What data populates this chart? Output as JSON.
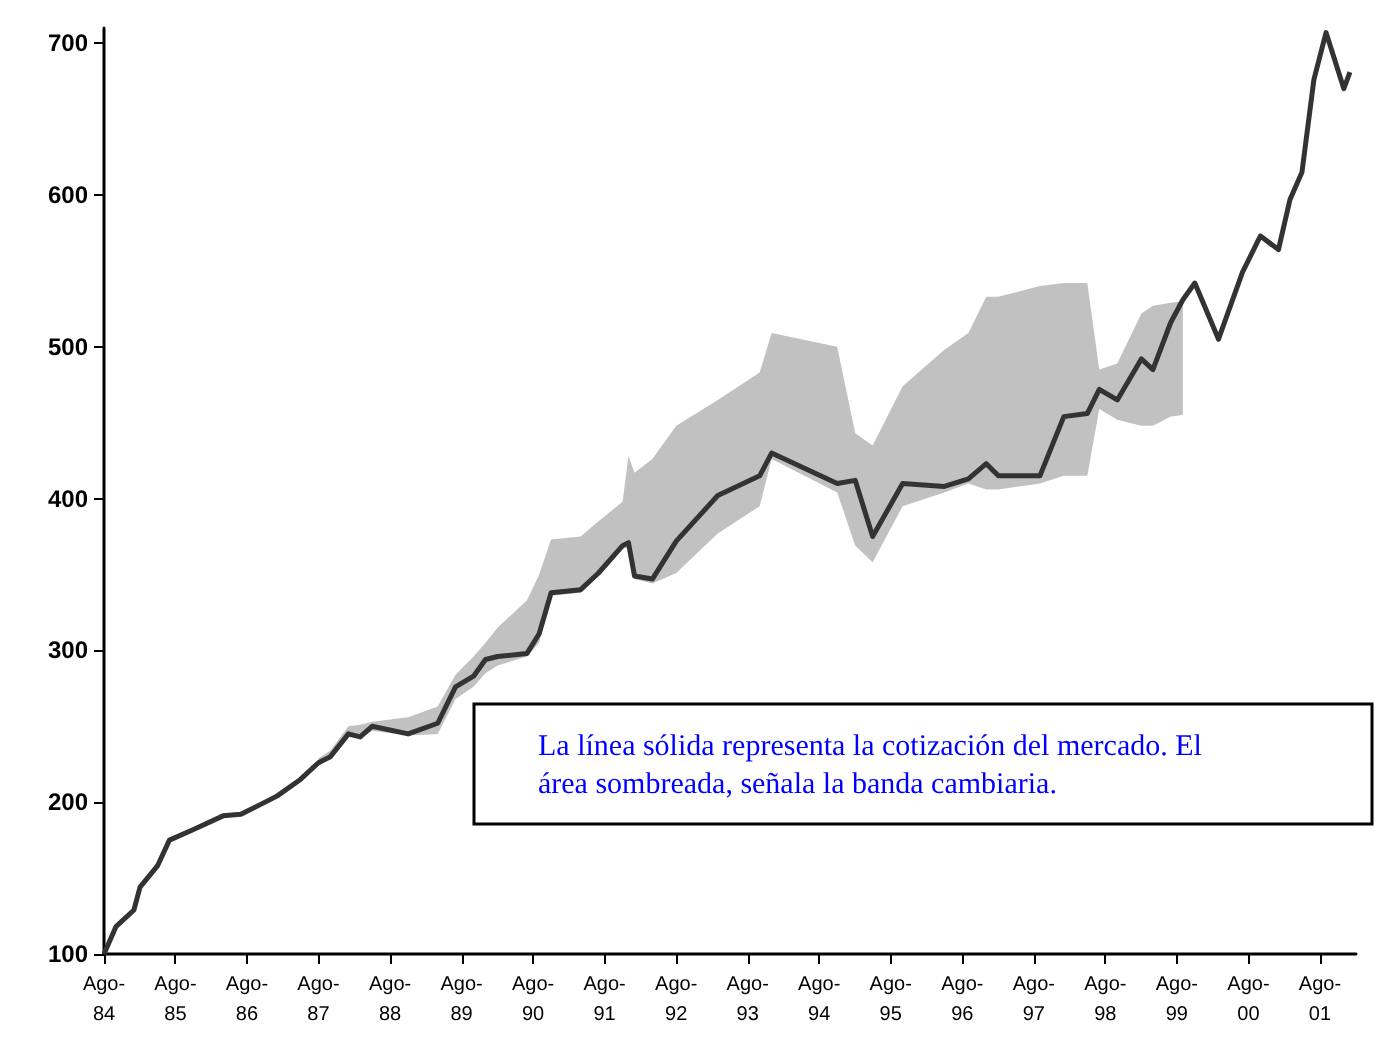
{
  "chart_data": {
    "type": "line",
    "x": [
      "1984-08",
      "1984-10",
      "1985-01",
      "1985-02",
      "1985-05",
      "1985-07",
      "1985-11",
      "1986-04",
      "1986-07",
      "1987-01",
      "1987-05",
      "1987-08",
      "1987-10",
      "1988-01",
      "1988-03",
      "1988-05",
      "1988-11",
      "1989-04",
      "1989-07",
      "1989-10",
      "1989-12",
      "1990-02",
      "1990-07",
      "1990-09",
      "1990-11",
      "1991-04",
      "1991-07",
      "1991-11",
      "1991-12",
      "1992-01",
      "1992-04",
      "1992-08",
      "1993-03",
      "1993-10",
      "1993-12",
      "1994-11",
      "1995-02",
      "1995-05",
      "1995-10",
      "1996-05",
      "1996-09",
      "1996-12",
      "1997-02",
      "1997-09",
      "1998-01",
      "1998-05",
      "1998-07",
      "1998-10",
      "1999-02",
      "1999-04",
      "1999-07",
      "1999-09",
      "1999-11",
      "2000-03",
      "2000-07",
      "2000-10",
      "2001-01",
      "2001-03",
      "2001-05",
      "2001-07",
      "2001-09",
      "2001-12",
      "2002-01"
    ],
    "series": [
      {
        "color": "#333333",
        "values": [
          100,
          118,
          129,
          144,
          158,
          175,
          182,
          191,
          192,
          204,
          215,
          226,
          230,
          245,
          243,
          250,
          245,
          252,
          276,
          283,
          294,
          296,
          298,
          311,
          338,
          340,
          351,
          369,
          371,
          349,
          347,
          372,
          402,
          415,
          430,
          410,
          412,
          375,
          410,
          408,
          413,
          423,
          415,
          415,
          454,
          456,
          472,
          465,
          492,
          485,
          516,
          531,
          542,
          505,
          549,
          573,
          564,
          597,
          615,
          676,
          707,
          670,
          681
        ],
        "lower": [
          null,
          null,
          null,
          null,
          null,
          null,
          null,
          null,
          null,
          null,
          null,
          224,
          229,
          243,
          242,
          247,
          244,
          245,
          268,
          276,
          285,
          290,
          296,
          305,
          336,
          338,
          349,
          367,
          368,
          347,
          344,
          351,
          377,
          395,
          426,
          404,
          369,
          358,
          395,
          404,
          410,
          406,
          406,
          410,
          415,
          415,
          459,
          452,
          448,
          448,
          454,
          455,
          null,
          null,
          null,
          null,
          null,
          null,
          null,
          null,
          null,
          null,
          null
        ],
        "upper": [
          null,
          null,
          null,
          null,
          null,
          null,
          null,
          null,
          null,
          null,
          null,
          229,
          234,
          250,
          251,
          253,
          256,
          263,
          284,
          296,
          305,
          315,
          333,
          350,
          373,
          375,
          385,
          398,
          428,
          417,
          426,
          448,
          465,
          483,
          509,
          500,
          443,
          435,
          474,
          498,
          509,
          533,
          533,
          540,
          542,
          542,
          485,
          489,
          522,
          527,
          529,
          530,
          null,
          null,
          null,
          null,
          null,
          null,
          null,
          null,
          null,
          null,
          null
        ]
      }
    ],
    "ylim": [
      100,
      710
    ],
    "yticks": [
      100,
      200,
      300,
      400,
      500,
      600,
      700
    ],
    "xlim": [
      "1984-08",
      "2002-02"
    ],
    "xticks": [
      {
        "value": "1984-08",
        "label": "Ago-84"
      },
      {
        "value": "1985-08",
        "label": "Ago-85"
      },
      {
        "value": "1986-08",
        "label": "Ago-86"
      },
      {
        "value": "1987-08",
        "label": "Ago-87"
      },
      {
        "value": "1988-08",
        "label": "Ago-88"
      },
      {
        "value": "1989-08",
        "label": "Ago-89"
      },
      {
        "value": "1990-08",
        "label": "Ago-90"
      },
      {
        "value": "1991-08",
        "label": "Ago-91"
      },
      {
        "value": "1992-08",
        "label": "Ago-92"
      },
      {
        "value": "1993-08",
        "label": "Ago-93"
      },
      {
        "value": "1994-08",
        "label": "Ago-94"
      },
      {
        "value": "1995-08",
        "label": "Ago-95"
      },
      {
        "value": "1996-08",
        "label": "Ago-96"
      },
      {
        "value": "1997-08",
        "label": "Ago-97"
      },
      {
        "value": "1998-08",
        "label": "Ago-98"
      },
      {
        "value": "1999-08",
        "label": "Ago-99"
      },
      {
        "value": "2000-08",
        "label": "Ago-00"
      },
      {
        "value": "2001-08",
        "label": "Ago-01"
      }
    ],
    "annotations": [
      "La línea sólida representa la cotización del mercado. El área sombreada, señala la banda cambiaria."
    ]
  }
}
